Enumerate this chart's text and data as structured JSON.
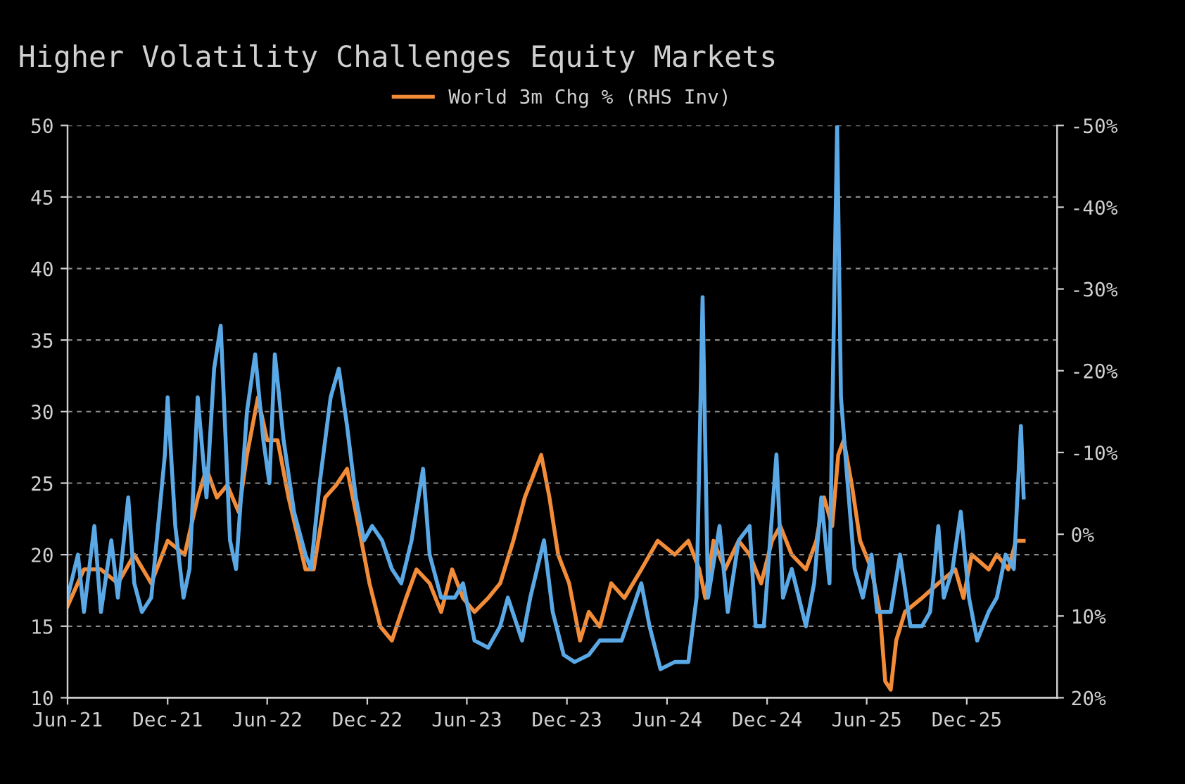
{
  "chart_data": {
    "type": "line",
    "title": "Higher Volatility Challenges Equity Markets",
    "legend": "top",
    "grid": "y",
    "line_style": "solid",
    "marker": "none",
    "xlim": [
      "2021-06-01",
      "2026-05-15"
    ],
    "xticks": [
      {
        "value": "2021-06-01",
        "label": "Jun-21"
      },
      {
        "value": "2021-12-01",
        "label": "Dec-21"
      },
      {
        "value": "2022-06-01",
        "label": "Jun-22"
      },
      {
        "value": "2022-12-01",
        "label": "Dec-22"
      },
      {
        "value": "2023-06-01",
        "label": "Jun-23"
      },
      {
        "value": "2023-12-01",
        "label": "Dec-23"
      },
      {
        "value": "2024-06-01",
        "label": "Jun-24"
      },
      {
        "value": "2024-12-01",
        "label": "Dec-24"
      },
      {
        "value": "2025-06-01",
        "label": "Jun-25"
      },
      {
        "value": "2025-12-01",
        "label": "Dec-25"
      }
    ],
    "ylim": [
      10,
      50
    ],
    "yticks": [
      10,
      15,
      20,
      25,
      30,
      35,
      40,
      45,
      50
    ],
    "y2lim": [
      20,
      -50
    ],
    "y2ticks": [
      {
        "value": 20,
        "label": "20%"
      },
      {
        "value": 10,
        "label": "10%"
      },
      {
        "value": 0,
        "label": "0%"
      },
      {
        "value": -10,
        "label": "-10%"
      },
      {
        "value": -20,
        "label": "-20%"
      },
      {
        "value": -30,
        "label": "-30%"
      },
      {
        "value": -40,
        "label": "-40%"
      },
      {
        "value": -50,
        "label": "-50%"
      }
    ],
    "series": [
      {
        "color": "#5aa9e6",
        "x": [
          "2021-06-01",
          "2021-06-20",
          "2021-07-01",
          "2021-07-20",
          "2021-08-01",
          "2021-08-20",
          "2021-09-01",
          "2021-09-20",
          "2021-10-01",
          "2021-10-15",
          "2021-11-01",
          "2021-11-26",
          "2021-12-01",
          "2021-12-15",
          "2021-12-30",
          "2022-01-10",
          "2022-01-25",
          "2022-02-10",
          "2022-02-24",
          "2022-03-08",
          "2022-03-25",
          "2022-04-05",
          "2022-04-25",
          "2022-05-10",
          "2022-05-25",
          "2022-06-05",
          "2022-06-15",
          "2022-07-01",
          "2022-07-20",
          "2022-08-10",
          "2022-08-20",
          "2022-09-05",
          "2022-09-25",
          "2022-10-10",
          "2022-10-25",
          "2022-11-10",
          "2022-11-25",
          "2022-12-10",
          "2022-12-28",
          "2023-01-15",
          "2023-02-01",
          "2023-02-20",
          "2023-03-13",
          "2023-03-25",
          "2023-04-15",
          "2023-05-10",
          "2023-05-25",
          "2023-06-15",
          "2023-07-10",
          "2023-08-01",
          "2023-08-15",
          "2023-09-10",
          "2023-09-25",
          "2023-10-20",
          "2023-11-05",
          "2023-11-25",
          "2023-12-15",
          "2024-01-10",
          "2024-01-30",
          "2024-02-15",
          "2024-03-10",
          "2024-04-15",
          "2024-04-30",
          "2024-05-20",
          "2024-06-15",
          "2024-07-10",
          "2024-07-25",
          "2024-08-05",
          "2024-08-15",
          "2024-09-05",
          "2024-09-20",
          "2024-10-10",
          "2024-10-30",
          "2024-11-10",
          "2024-11-25",
          "2024-12-18",
          "2024-12-30",
          "2025-01-15",
          "2025-02-10",
          "2025-02-25",
          "2025-03-10",
          "2025-03-25",
          "2025-04-08",
          "2025-04-15",
          "2025-04-25",
          "2025-05-10",
          "2025-05-25",
          "2025-06-10",
          "2025-06-20",
          "2025-07-15",
          "2025-08-01",
          "2025-08-20",
          "2025-09-10",
          "2025-09-25",
          "2025-10-10",
          "2025-10-20",
          "2025-11-05",
          "2025-11-20",
          "2025-12-05",
          "2025-12-20",
          "2026-01-10",
          "2026-01-25",
          "2026-02-10",
          "2026-02-25",
          "2026-03-10",
          "2026-03-15"
        ],
        "values": [
          17,
          20,
          16,
          22,
          16,
          21,
          17,
          24,
          18,
          16,
          17,
          27,
          31,
          22,
          17,
          19,
          31,
          24,
          33,
          36,
          21,
          19,
          30,
          34,
          28,
          25,
          34,
          28,
          23,
          20,
          19,
          25,
          31,
          33,
          29,
          24,
          21,
          22,
          21,
          19,
          18,
          21,
          26,
          20,
          17,
          17,
          18,
          14,
          13.5,
          15,
          17,
          14,
          17,
          21,
          16,
          13,
          12.5,
          13,
          14,
          14,
          14,
          18,
          15,
          12,
          12.5,
          12.5,
          17,
          38,
          17,
          22,
          16,
          21,
          22,
          15,
          15,
          27,
          17,
          19,
          15,
          18,
          24,
          18,
          50,
          31,
          26,
          19,
          17,
          20,
          16,
          16,
          20,
          15,
          15,
          16,
          22,
          17,
          19,
          23,
          17,
          14,
          16,
          17,
          20,
          19,
          29,
          24
        ]
      },
      {
        "name": "World 3m Chg % (RHS Inv)",
        "color": "#f28c38",
        "axis": "y2",
        "x": [
          "2021-06-01",
          "2021-07-01",
          "2021-08-01",
          "2021-09-01",
          "2021-10-01",
          "2021-11-01",
          "2021-12-01",
          "2022-01-01",
          "2022-01-25",
          "2022-02-10",
          "2022-03-01",
          "2022-03-20",
          "2022-04-10",
          "2022-04-25",
          "2022-05-15",
          "2022-06-01",
          "2022-06-20",
          "2022-07-10",
          "2022-08-10",
          "2022-08-25",
          "2022-09-15",
          "2022-10-05",
          "2022-10-25",
          "2022-11-15",
          "2022-12-05",
          "2022-12-25",
          "2023-01-15",
          "2023-02-10",
          "2023-03-01",
          "2023-03-25",
          "2023-04-15",
          "2023-05-05",
          "2023-05-25",
          "2023-06-15",
          "2023-07-10",
          "2023-08-01",
          "2023-08-25",
          "2023-09-15",
          "2023-10-15",
          "2023-10-30",
          "2023-11-15",
          "2023-12-05",
          "2023-12-25",
          "2024-01-10",
          "2024-01-30",
          "2024-02-20",
          "2024-03-15",
          "2024-04-15",
          "2024-05-15",
          "2024-06-15",
          "2024-07-10",
          "2024-07-30",
          "2024-08-10",
          "2024-08-25",
          "2024-09-15",
          "2024-10-10",
          "2024-10-30",
          "2024-11-20",
          "2024-12-10",
          "2024-12-25",
          "2025-01-15",
          "2025-02-10",
          "2025-03-01",
          "2025-03-15",
          "2025-03-30",
          "2025-04-10",
          "2025-04-20",
          "2025-05-05",
          "2025-05-20",
          "2025-06-10",
          "2025-06-25",
          "2025-07-05",
          "2025-07-15",
          "2025-07-25",
          "2025-08-10",
          "2025-09-10",
          "2025-10-10",
          "2025-11-10",
          "2025-11-25",
          "2025-12-10",
          "2026-01-10",
          "2026-01-25",
          "2026-02-15",
          "2026-03-01",
          "2026-03-15"
        ],
        "values": [
          8.8,
          4.3,
          4.3,
          6,
          2.5,
          6,
          0.8,
          2.5,
          -4.5,
          -8,
          -4.5,
          -6,
          -2.7,
          -9.7,
          -16.7,
          -11.5,
          -11.5,
          -4.5,
          4.3,
          4.3,
          -4.5,
          -6,
          -8,
          -1,
          6,
          11.3,
          13,
          7.8,
          4.3,
          6,
          9.5,
          4.3,
          7.8,
          9.5,
          7.8,
          6,
          0.8,
          -4.5,
          -9.7,
          -4.5,
          2.5,
          6,
          13,
          9.5,
          11.3,
          6,
          7.8,
          4.3,
          0.8,
          2.5,
          0.8,
          4.3,
          7.8,
          0.8,
          4.3,
          0.8,
          2.5,
          6,
          0.8,
          -1,
          2.5,
          4.3,
          0.8,
          -4.5,
          -1,
          -9.7,
          -11.5,
          -6,
          0.8,
          4.3,
          9.5,
          18,
          19,
          13,
          9.5,
          7.8,
          6,
          4.3,
          7.8,
          2.5,
          4.3,
          2.5,
          4.3,
          0.8,
          0.8
        ]
      }
    ]
  }
}
